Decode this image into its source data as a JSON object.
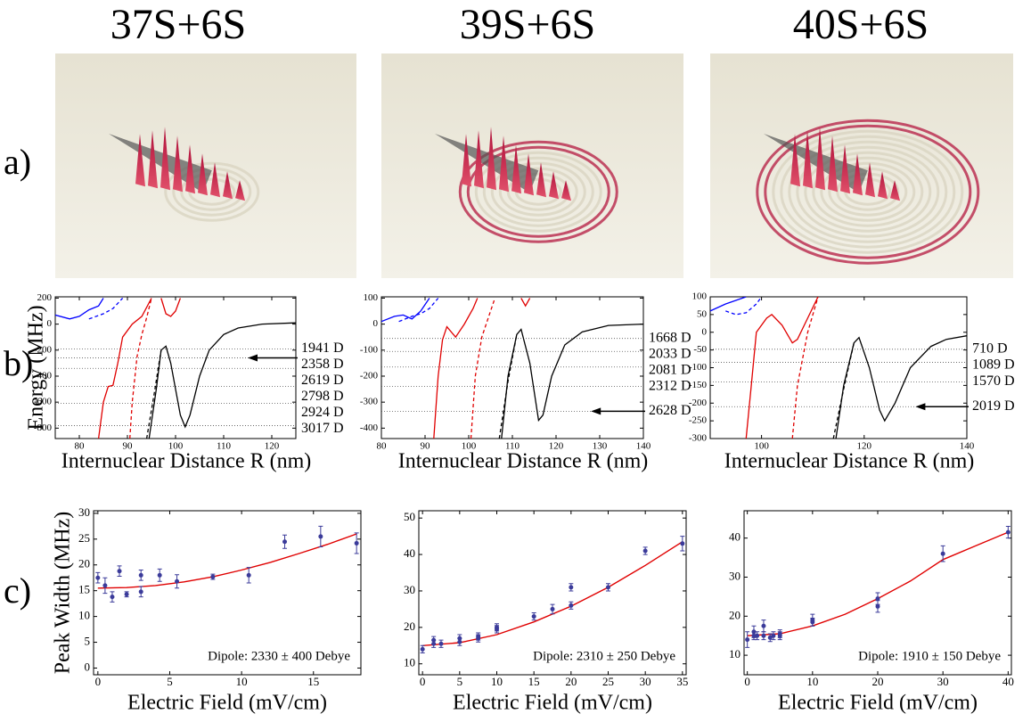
{
  "column_titles": [
    "37S+6S",
    "39S+6S",
    "40S+6S"
  ],
  "row_labels": [
    "a)",
    "b)",
    "c)"
  ],
  "chart_data": [
    {
      "type": "line",
      "ylabel": "Energy (MHz)",
      "xlabel": "Internuclear Distance R (nm)",
      "xlim": [
        75,
        125
      ],
      "xticks": [
        80,
        90,
        100,
        110,
        120
      ],
      "ylim": [
        -880,
        210
      ],
      "yticks": [
        200,
        0,
        -200,
        -400,
        -600,
        -800
      ],
      "series": [
        {
          "color": "#0000ff",
          "dash": false,
          "x": [
            75,
            78,
            80,
            82,
            84,
            85
          ],
          "values": [
            70,
            40,
            60,
            110,
            140,
            200
          ]
        },
        {
          "color": "#0000ff",
          "dash": true,
          "x": [
            82,
            85,
            87,
            89
          ],
          "values": [
            40,
            80,
            120,
            200
          ]
        },
        {
          "color": "#e00000",
          "dash": false,
          "x": [
            84,
            85,
            86,
            87,
            88,
            89,
            91,
            93,
            95,
            null,
            97,
            98,
            99,
            100,
            101
          ],
          "values": [
            -880,
            -600,
            -480,
            -470,
            -300,
            -100,
            0,
            60,
            200,
            null,
            200,
            80,
            60,
            100,
            200
          ]
        },
        {
          "color": "#e00000",
          "dash": true,
          "x": [
            90.5,
            91,
            92,
            93,
            94,
            95
          ],
          "values": [
            -880,
            -600,
            -250,
            -80,
            50,
            200
          ]
        },
        {
          "color": "#000000",
          "dash": false,
          "x": [
            94.5,
            96,
            97,
            98,
            99,
            101,
            102,
            103,
            105,
            107,
            110,
            113,
            118,
            125
          ],
          "values": [
            -880,
            -500,
            -200,
            -170,
            -300,
            -700,
            -790,
            -700,
            -400,
            -200,
            -80,
            -30,
            0,
            10
          ]
        },
        {
          "color": "#000000",
          "dash": true,
          "x": [
            94,
            95.5,
            97
          ],
          "values": [
            -880,
            -550,
            -200
          ]
        }
      ],
      "levels": {
        "values": [
          -190,
          -260,
          -340,
          -480,
          -610,
          -780
        ],
        "labels": [
          "1941 D",
          "2358 D",
          "2619 D",
          "2798 D",
          "2924 D",
          "3017 D"
        ]
      },
      "arrow_level": 1
    },
    {
      "type": "line",
      "xlabel": "Internuclear Distance R (nm)",
      "xlim": [
        80,
        140
      ],
      "xticks": [
        80,
        90,
        100,
        110,
        120,
        130,
        140
      ],
      "ylim": [
        -440,
        105
      ],
      "yticks": [
        100,
        0,
        -100,
        -200,
        -300,
        -400
      ],
      "series": [
        {
          "color": "#0000ff",
          "dash": false,
          "x": [
            80,
            83,
            85,
            87,
            89,
            91
          ],
          "values": [
            10,
            30,
            35,
            20,
            50,
            100
          ]
        },
        {
          "color": "#0000ff",
          "dash": true,
          "x": [
            84,
            87,
            89,
            91,
            93
          ],
          "values": [
            10,
            30,
            40,
            60,
            100
          ]
        },
        {
          "color": "#e00000",
          "dash": false,
          "x": [
            92,
            93,
            94,
            95,
            97,
            99,
            101,
            102,
            null,
            112,
            113,
            114
          ],
          "values": [
            -440,
            -200,
            -60,
            -10,
            -50,
            0,
            60,
            100,
            null,
            100,
            70,
            100
          ]
        },
        {
          "color": "#e00000",
          "dash": true,
          "x": [
            100.5,
            101.5,
            103,
            105,
            106
          ],
          "values": [
            -440,
            -200,
            -50,
            50,
            100
          ]
        },
        {
          "color": "#000000",
          "dash": false,
          "x": [
            107.5,
            109,
            111,
            112,
            114,
            116,
            117,
            119,
            122,
            126,
            132,
            140
          ],
          "values": [
            -440,
            -200,
            -40,
            -20,
            -150,
            -370,
            -350,
            -200,
            -80,
            -30,
            -5,
            0
          ]
        },
        {
          "color": "#000000",
          "dash": true,
          "x": [
            107,
            109,
            111
          ],
          "values": [
            -440,
            -220,
            -40
          ]
        }
      ],
      "levels": {
        "values": [
          -55,
          -105,
          -165,
          -240,
          -335
        ],
        "labels": [
          "1668 D",
          "2033 D",
          "2081 D",
          "2312 D",
          "2628 D"
        ]
      },
      "arrow_level": 4
    },
    {
      "type": "line",
      "xlabel": "Internuclear Distance R (nm)",
      "xlim": [
        90,
        140
      ],
      "xticks": [
        100,
        120,
        140
      ],
      "ylim": [
        -300,
        100
      ],
      "yticks": [
        100,
        50,
        0,
        -50,
        -100,
        -150,
        -200,
        -250,
        -300
      ],
      "series": [
        {
          "color": "#0000ff",
          "dash": false,
          "x": [
            90,
            93,
            95,
            97
          ],
          "values": [
            60,
            80,
            90,
            100
          ]
        },
        {
          "color": "#0000ff",
          "dash": true,
          "x": [
            93,
            95,
            97,
            99,
            100
          ],
          "values": [
            60,
            50,
            55,
            80,
            100
          ]
        },
        {
          "color": "#e00000",
          "dash": false,
          "x": [
            97,
            98,
            99,
            101,
            102,
            104,
            106,
            107,
            109,
            111
          ],
          "values": [
            -300,
            -150,
            0,
            40,
            50,
            20,
            -30,
            -20,
            40,
            100
          ]
        },
        {
          "color": "#e00000",
          "dash": true,
          "x": [
            106,
            107,
            109,
            111
          ],
          "values": [
            -300,
            -150,
            0,
            100
          ]
        },
        {
          "color": "#000000",
          "dash": false,
          "x": [
            114.5,
            116,
            118,
            119,
            121,
            123,
            124,
            126,
            129,
            133,
            136,
            140
          ],
          "values": [
            -300,
            -150,
            -30,
            -15,
            -100,
            -220,
            -250,
            -200,
            -100,
            -40,
            -20,
            -10
          ]
        },
        {
          "color": "#000000",
          "dash": true,
          "x": [
            114,
            116,
            118
          ],
          "values": [
            -300,
            -160,
            -30
          ]
        }
      ],
      "levels": {
        "values": [
          -48,
          -85,
          -140,
          -210
        ],
        "labels": [
          "710 D",
          "1089 D",
          "1570 D",
          "2019 D"
        ]
      },
      "arrow_level": 3
    },
    {
      "type": "scatter",
      "ylabel": "Peak Width (MHz)",
      "xlabel": "Electric Field (mV/cm)",
      "xlim": [
        -0.3,
        18.3
      ],
      "xticks": [
        0,
        5,
        10,
        15
      ],
      "ylim": [
        -1.3,
        30.5
      ],
      "yticks": [
        0,
        5,
        10,
        15,
        20,
        25,
        30
      ],
      "annotation": "Dipole: 2330 ± 400 Debye",
      "color": "#3b3b9a",
      "x": [
        0,
        0.5,
        1,
        1.5,
        2,
        3,
        3,
        4.3,
        5.5,
        8,
        10.5,
        13,
        15.5,
        18
      ],
      "values": [
        17.5,
        16,
        13.8,
        18.8,
        14.3,
        14.8,
        18,
        18,
        16.8,
        17.7,
        18,
        24.5,
        25.5,
        24.2
      ],
      "errors": [
        1,
        1.5,
        1,
        1,
        0.5,
        1,
        1,
        1.2,
        1.3,
        0.5,
        1.5,
        1.3,
        2,
        2
      ],
      "fit": {
        "color": "#e00000",
        "x": [
          0,
          2,
          4,
          6,
          8,
          10,
          12,
          14,
          16,
          18
        ],
        "values": [
          15.5,
          15.6,
          16,
          16.7,
          17.7,
          19,
          20.5,
          22.2,
          24,
          26
        ]
      }
    },
    {
      "type": "scatter",
      "xlabel": "Electric Field (mV/cm)",
      "xlim": [
        -0.5,
        35.5
      ],
      "xticks": [
        0,
        5,
        10,
        15,
        20,
        25,
        30,
        35
      ],
      "ylim": [
        7,
        52
      ],
      "yticks": [
        10,
        20,
        30,
        40,
        50
      ],
      "annotation": "Dipole: 2310 ± 250 Debye",
      "color": "#3b3b9a",
      "x": [
        0,
        1.5,
        1.5,
        2.5,
        5,
        5,
        7.5,
        7.5,
        10,
        10,
        15,
        17.5,
        20,
        20,
        25,
        30,
        35
      ],
      "values": [
        14,
        16.5,
        15.5,
        15.5,
        16,
        17,
        17.5,
        17,
        19.5,
        20,
        23,
        25,
        26,
        31,
        31,
        41,
        43
      ],
      "errors": [
        1,
        1,
        1,
        1,
        1,
        1,
        1,
        1,
        1,
        1,
        1,
        1.3,
        1,
        1,
        1,
        1,
        2
      ],
      "fit": {
        "color": "#e00000",
        "x": [
          0,
          5,
          10,
          15,
          20,
          25,
          30,
          35
        ],
        "values": [
          15,
          15.8,
          18,
          21.5,
          25.8,
          31,
          37,
          43.5
        ]
      }
    },
    {
      "type": "scatter",
      "xlabel": "Electric Field (mV/cm)",
      "xlim": [
        -0.5,
        40.5
      ],
      "xticks": [
        0,
        10,
        20,
        30,
        40
      ],
      "ylim": [
        5,
        47
      ],
      "yticks": [
        10,
        20,
        30,
        40
      ],
      "annotation": "Dipole: 1910 ± 150 Debye",
      "color": "#3b3b9a",
      "x": [
        0,
        1,
        1,
        1.5,
        2.5,
        2.5,
        3.5,
        4,
        5,
        5,
        10,
        10,
        20,
        20,
        30,
        40
      ],
      "values": [
        14,
        16,
        15,
        15,
        17.5,
        15,
        14.5,
        15,
        15,
        15.5,
        18.5,
        19,
        22.5,
        24.5,
        36,
        41.5
      ],
      "errors": [
        2,
        1.5,
        1,
        1,
        1.5,
        1,
        1,
        1,
        1,
        1,
        1,
        1.5,
        1.5,
        1.5,
        2,
        1.5
      ],
      "fit": {
        "color": "#e00000",
        "x": [
          0,
          5,
          10,
          15,
          20,
          25,
          30,
          35,
          40
        ],
        "values": [
          15,
          15.5,
          17.5,
          20.5,
          24.5,
          29,
          34.5,
          38,
          41.5
        ]
      }
    }
  ]
}
